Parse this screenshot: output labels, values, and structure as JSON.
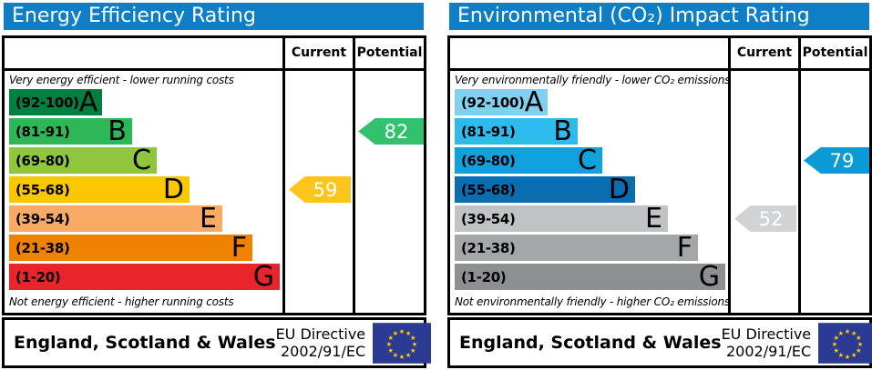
{
  "colors": {
    "title_bar": "#0e7ec6",
    "border": "#000000",
    "eu_flag_bg": "#2b3a92",
    "eu_star": "#ffcc00"
  },
  "chart_data": [
    {
      "type": "bar",
      "title": "Energy Efficiency Rating",
      "orientation": "horizontal",
      "categories": [
        "A (92-100)",
        "B (81-91)",
        "C (69-80)",
        "D (55-68)",
        "E (39-54)",
        "F (21-38)",
        "G (1-20)"
      ],
      "band_display_widths_pct": [
        34,
        45,
        54,
        66,
        78,
        89,
        99
      ],
      "value_scale": [
        1,
        100
      ],
      "top_caption": "Very energy efficient - lower running costs",
      "bottom_caption": "Not energy efficient - higher running costs",
      "markers": {
        "current": {
          "value": 59,
          "band": "D"
        },
        "potential": {
          "value": 82,
          "band": "B"
        }
      }
    },
    {
      "type": "bar",
      "title": "Environmental (CO₂) Impact Rating",
      "orientation": "horizontal",
      "categories": [
        "A (92-100)",
        "B (81-91)",
        "C (69-80)",
        "D (55-68)",
        "E (39-54)",
        "F (21-38)",
        "G (1-20)"
      ],
      "band_display_widths_pct": [
        34,
        45,
        54,
        66,
        78,
        89,
        99
      ],
      "value_scale": [
        1,
        100
      ],
      "top_caption": "Very environmentally friendly - lower CO₂ emissions",
      "bottom_caption": "Not environmentally friendly - higher CO₂ emissions",
      "markers": {
        "current": {
          "value": 52,
          "band": "E"
        },
        "potential": {
          "value": 79,
          "band": "C"
        }
      }
    }
  ],
  "panels": [
    {
      "title": "Energy Efficiency Rating",
      "columns": {
        "current": "Current",
        "potential": "Potential"
      },
      "top_caption": "Very energy efficient - lower running costs",
      "bottom_caption": "Not energy efficient - higher running costs",
      "bands": [
        {
          "letter": "A",
          "range": "(92-100)",
          "color": "#008040",
          "width_pct": 34
        },
        {
          "letter": "B",
          "range": "(81-91)",
          "color": "#2eb757",
          "width_pct": 45
        },
        {
          "letter": "C",
          "range": "(69-80)",
          "color": "#8fc63e",
          "width_pct": 54
        },
        {
          "letter": "D",
          "range": "(55-68)",
          "color": "#fcc600",
          "width_pct": 66
        },
        {
          "letter": "E",
          "range": "(39-54)",
          "color": "#f9ab66",
          "width_pct": 78
        },
        {
          "letter": "F",
          "range": "(21-38)",
          "color": "#ef8200",
          "width_pct": 89
        },
        {
          "letter": "G",
          "range": "(1-20)",
          "color": "#ea242d",
          "width_pct": 99
        }
      ],
      "current": {
        "value": 59,
        "band": "D",
        "color": "#fdc51c"
      },
      "potential": {
        "value": 82,
        "band": "B",
        "color": "#32c16f"
      },
      "footer": {
        "region": "England, Scotland & Wales",
        "directive_line1": "EU Directive",
        "directive_line2": "2002/91/EC"
      }
    },
    {
      "title": "Environmental (CO₂) Impact Rating",
      "columns": {
        "current": "Current",
        "potential": "Potential"
      },
      "top_caption": "Very environmentally friendly - lower CO₂ emissions",
      "bottom_caption": "Not environmentally friendly - higher CO₂ emissions",
      "bands": [
        {
          "letter": "A",
          "range": "(92-100)",
          "color": "#80d1f0",
          "width_pct": 34
        },
        {
          "letter": "B",
          "range": "(81-91)",
          "color": "#2ebaec",
          "width_pct": 45
        },
        {
          "letter": "C",
          "range": "(69-80)",
          "color": "#0fa2dc",
          "width_pct": 54
        },
        {
          "letter": "D",
          "range": "(55-68)",
          "color": "#0b6db1",
          "width_pct": 66
        },
        {
          "letter": "E",
          "range": "(39-54)",
          "color": "#c1c2c4",
          "width_pct": 78
        },
        {
          "letter": "F",
          "range": "(21-38)",
          "color": "#a5a6a8",
          "width_pct": 89
        },
        {
          "letter": "G",
          "range": "(1-20)",
          "color": "#8d8f91",
          "width_pct": 99
        }
      ],
      "current": {
        "value": 52,
        "band": "E",
        "color": "#d1d2d4"
      },
      "potential": {
        "value": 79,
        "band": "C",
        "color": "#0b9bd4"
      },
      "footer": {
        "region": "England, Scotland & Wales",
        "directive_line1": "EU Directive",
        "directive_line2": "2002/91/EC"
      }
    }
  ]
}
